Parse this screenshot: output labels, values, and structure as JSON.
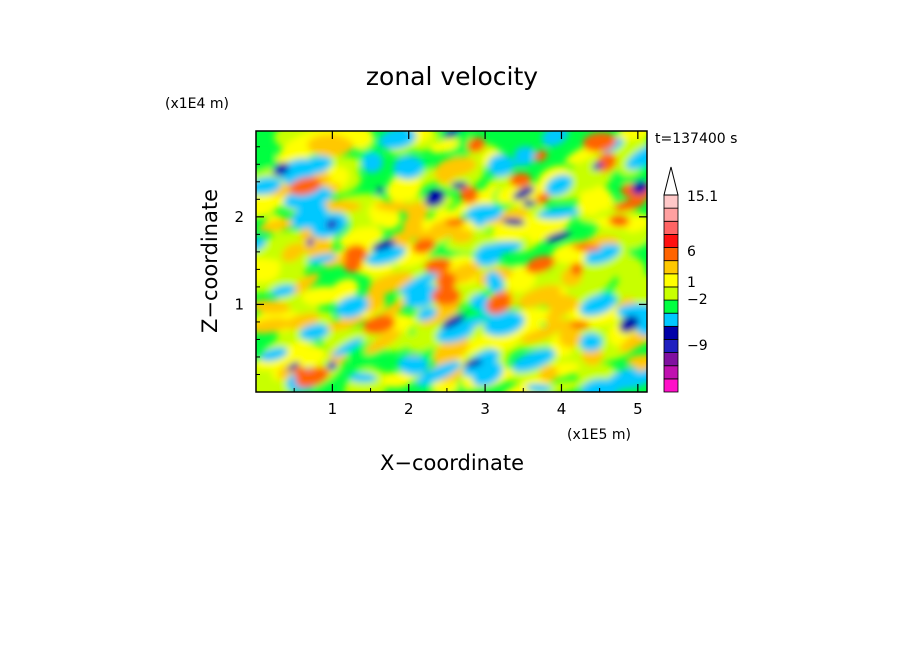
{
  "chart_data": {
    "type": "heatmap",
    "title": "zonal velocity",
    "xlabel": "X−coordinate",
    "ylabel": "Z−coordinate",
    "x_scale_label": "(x1E5 m)",
    "y_scale_label": "(x1E4 m)",
    "time_label": "t=137400 s",
    "xlim": [
      0,
      5.12
    ],
    "ylim": [
      0,
      2.98
    ],
    "x_ticks": [
      1,
      2,
      3,
      4,
      5
    ],
    "y_ticks": [
      1,
      2
    ],
    "colorbar": {
      "tick_labels": [
        "15.1",
        "6",
        "1",
        "−2",
        "−9"
      ],
      "colors": [
        "#ff10c8",
        "#c010b0",
        "#8010a0",
        "#2020c0",
        "#0000a8",
        "#00c8ff",
        "#00ff40",
        "#c8ff00",
        "#ffff00",
        "#ffc800",
        "#ff6400",
        "#ff1010",
        "#ff6464",
        "#ffa0a0",
        "#ffc8c8"
      ],
      "overflow_top_color": "#ffffff"
    }
  }
}
